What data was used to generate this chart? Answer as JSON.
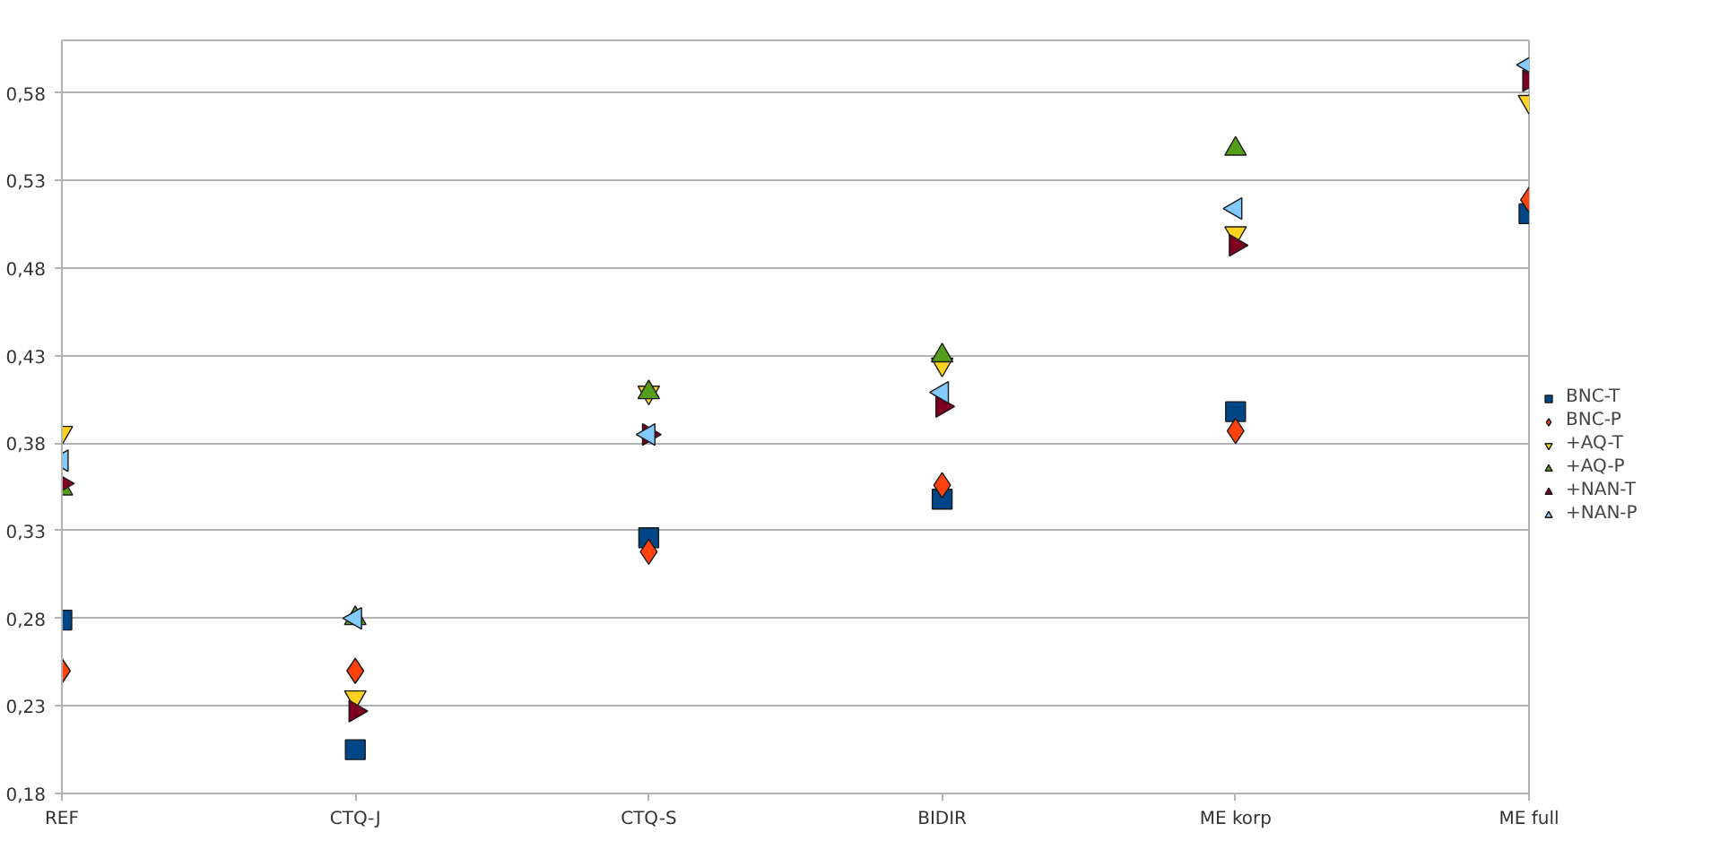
{
  "chart_data": {
    "type": "scatter",
    "categories": [
      "REF",
      "CTQ-J",
      "CTQ-S",
      "BIDIR",
      "ME korp",
      "ME full"
    ],
    "series": [
      {
        "name": "BNC-T",
        "color": "#004586",
        "marker": "square",
        "values": [
          0.279,
          0.205,
          0.326,
          0.348,
          0.398,
          0.511
        ]
      },
      {
        "name": "BNC-P",
        "color": "#ff420e",
        "marker": "diamond",
        "values": [
          0.25,
          0.25,
          0.318,
          0.356,
          0.387,
          0.519
        ]
      },
      {
        "name": "+AQ-T",
        "color": "#ffd320",
        "marker": "triangle",
        "values": [
          0.386,
          0.235,
          0.409,
          0.425,
          0.5,
          0.575
        ]
      },
      {
        "name": "+AQ-P",
        "color": "#579d1c",
        "marker": "triangle",
        "values": [
          0.354,
          0.28,
          0.409,
          0.43,
          0.548,
          null
        ]
      },
      {
        "name": "+NAN-T",
        "color": "#7e0021",
        "marker": "triangle",
        "values": [
          0.357,
          0.227,
          0.385,
          0.401,
          0.493,
          0.587
        ]
      },
      {
        "name": "+NAN-P",
        "color": "#83caff",
        "marker": "triangle",
        "values": [
          0.37,
          0.28,
          0.385,
          0.409,
          0.514,
          0.596
        ]
      }
    ],
    "ylim": [
      0.18,
      0.61
    ],
    "yticks": [
      {
        "value": 0.18,
        "label": "0,18"
      },
      {
        "value": 0.23,
        "label": "0,23"
      },
      {
        "value": 0.28,
        "label": "0,28"
      },
      {
        "value": 0.33,
        "label": "0,33"
      },
      {
        "value": 0.38,
        "label": "0,38"
      },
      {
        "value": 0.43,
        "label": "0,43"
      },
      {
        "value": 0.48,
        "label": "0,48"
      },
      {
        "value": 0.53,
        "label": "0,53"
      },
      {
        "value": 0.58,
        "label": "0,58"
      }
    ],
    "grid": "y",
    "legend": "right"
  }
}
